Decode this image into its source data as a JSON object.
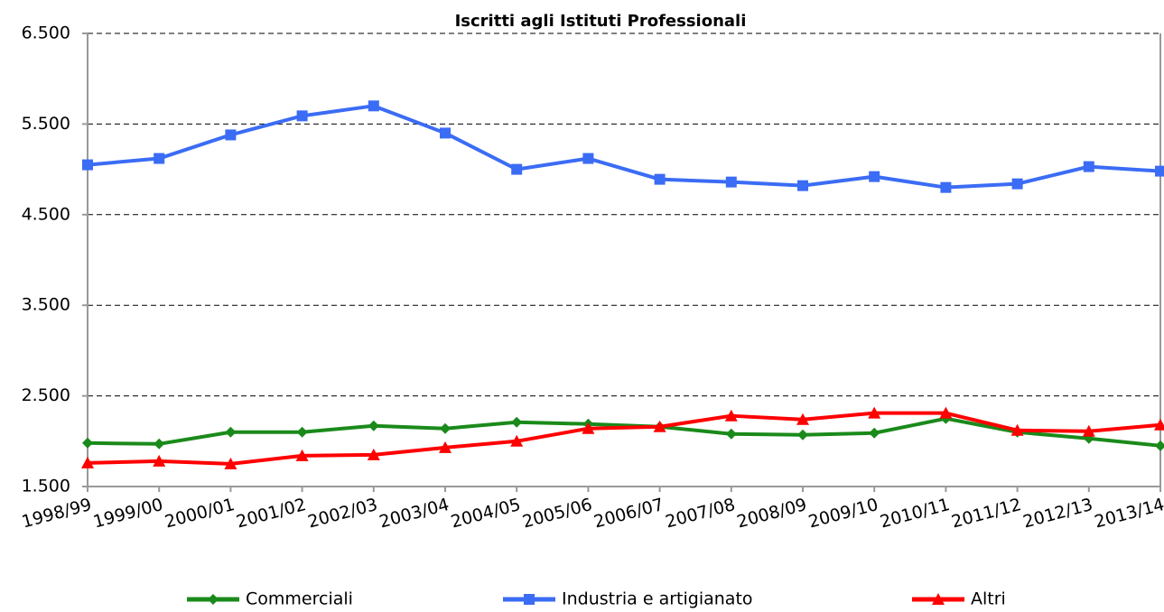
{
  "chart_data": {
    "type": "line",
    "title": "Iscritti agli Istituti Professionali",
    "categories": [
      "1998/99",
      "1999/00",
      "2000/01",
      "2001/02",
      "2002/03",
      "2003/04",
      "2004/05",
      "2005/06",
      "2006/07",
      "2007/08",
      "2008/09",
      "2009/10",
      "2010/11",
      "2011/12",
      "2012/13",
      "2013/14"
    ],
    "series": [
      {
        "name": "Commerciali",
        "color": "#1a8a1a",
        "marker": "diamond",
        "values": [
          1980,
          1970,
          2100,
          2100,
          2170,
          2140,
          2210,
          2190,
          2160,
          2080,
          2070,
          2090,
          2250,
          2100,
          2030,
          1950
        ]
      },
      {
        "name": "Industria e artigianato",
        "color": "#3b6cf5",
        "marker": "square",
        "values": [
          5050,
          5120,
          5380,
          5590,
          5700,
          5400,
          5000,
          5120,
          4890,
          4860,
          4820,
          4920,
          4800,
          4840,
          5030,
          4980
        ]
      },
      {
        "name": "Altri",
        "color": "#ff0000",
        "marker": "triangle",
        "values": [
          1760,
          1780,
          1750,
          1840,
          1850,
          1930,
          2000,
          2140,
          2160,
          2280,
          2240,
          2310,
          2310,
          2120,
          2110,
          2180
        ]
      }
    ],
    "ylim": [
      1500,
      6500
    ],
    "yticks": [
      {
        "value": 1500,
        "label": "1.500"
      },
      {
        "value": 2500,
        "label": "2.500"
      },
      {
        "value": 3500,
        "label": "3.500"
      },
      {
        "value": 4500,
        "label": "4.500"
      },
      {
        "value": 5500,
        "label": "5.500"
      },
      {
        "value": 6500,
        "label": "6.500"
      }
    ],
    "grid": true,
    "legend": "bottom"
  }
}
